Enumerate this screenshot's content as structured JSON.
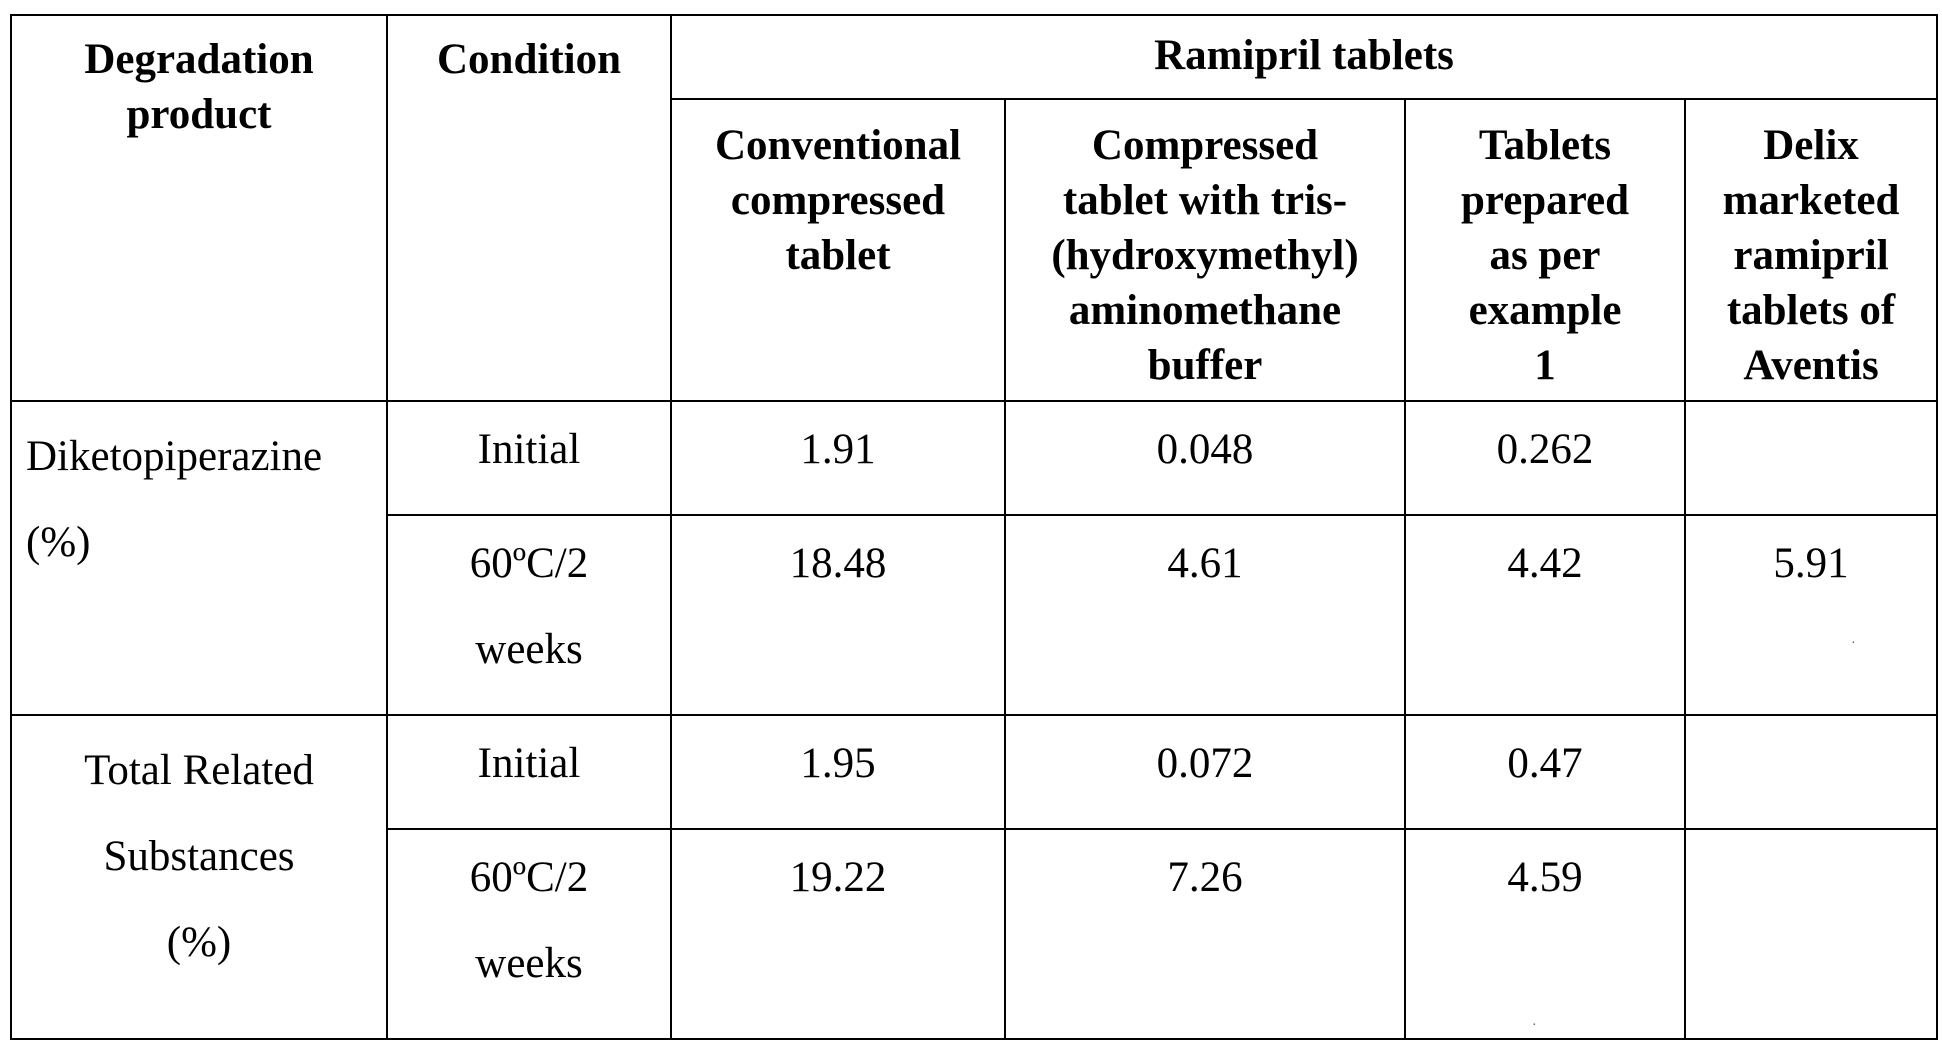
{
  "table": {
    "header": {
      "degradation_product": [
        "Degradation",
        "product"
      ],
      "condition": "Condition",
      "group": "Ramipril tablets",
      "columns": [
        [
          "Conventional",
          "compressed",
          "tablet"
        ],
        [
          "Compressed",
          "tablet with tris-",
          "(hydroxymethyl)",
          "aminomethane",
          "buffer"
        ],
        [
          "Tablets",
          "prepared",
          "as per",
          "example",
          "1"
        ],
        [
          "Delix",
          "marketed",
          "ramipril",
          "tablets of",
          "Aventis"
        ]
      ]
    },
    "groups": [
      {
        "product": [
          "Diketopiperazine",
          "(%)"
        ],
        "rows": [
          {
            "condition": [
              "Initial"
            ],
            "values": [
              "1.91",
              "0.048",
              "0.262",
              ""
            ]
          },
          {
            "condition": [
              "60ºC/2",
              "weeks"
            ],
            "values": [
              "18.48",
              "4.61",
              "4.42",
              "5.91"
            ]
          }
        ]
      },
      {
        "product": [
          "Total Related",
          "Substances",
          "(%)"
        ],
        "rows": [
          {
            "condition": [
              "Initial"
            ],
            "values": [
              "1.95",
              "0.072",
              "0.47",
              ""
            ]
          },
          {
            "condition": [
              "60ºC/2",
              "weeks"
            ],
            "values": [
              "19.22",
              "7.26",
              "4.59",
              ""
            ]
          }
        ]
      }
    ]
  }
}
